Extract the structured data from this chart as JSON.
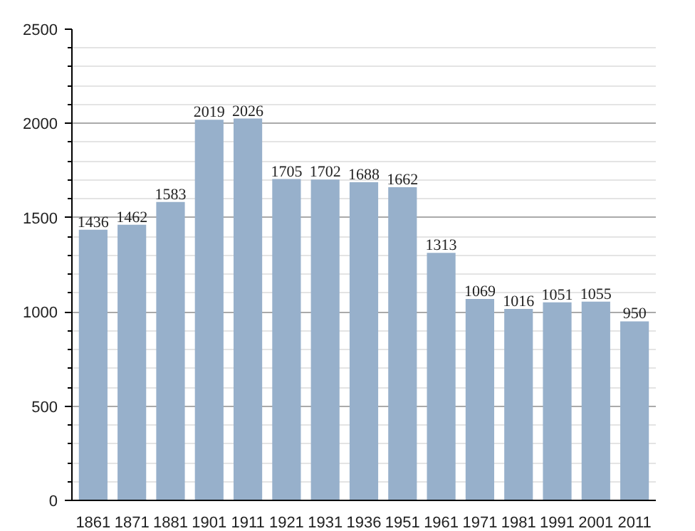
{
  "chart_data": {
    "type": "bar",
    "categories": [
      "1861",
      "1871",
      "1881",
      "1901",
      "1911",
      "1921",
      "1931",
      "1936",
      "1951",
      "1961",
      "1971",
      "1981",
      "1991",
      "2001",
      "2011"
    ],
    "values": [
      1436,
      1462,
      1583,
      2019,
      2026,
      1705,
      1702,
      1688,
      1662,
      1313,
      1069,
      1016,
      1051,
      1055,
      950
    ],
    "color": "#97b0cb",
    "ylim": [
      0,
      2500
    ],
    "yticks": [
      0,
      500,
      1000,
      1500,
      2000,
      2500
    ],
    "grid": "y",
    "data_labels": true
  }
}
